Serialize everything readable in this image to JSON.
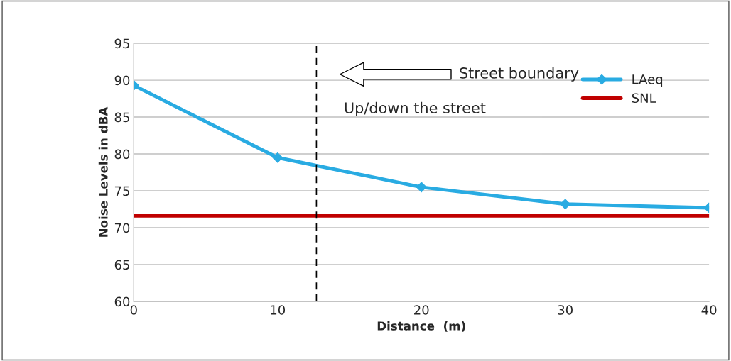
{
  "chart_data": {
    "type": "line",
    "xlabel": "Distance  (m)",
    "ylabel": "Noise Levels in dBA",
    "x": [
      0,
      10,
      20,
      30,
      40
    ],
    "series": [
      {
        "name": "LAeq",
        "color": "#29abe2",
        "values": [
          89.3,
          79.5,
          75.5,
          73.2,
          72.7
        ],
        "marker": "diamond"
      },
      {
        "name": "SNL",
        "color": "#c00000",
        "values": [
          71.6,
          71.6,
          71.6,
          71.6,
          71.6
        ],
        "marker": "none"
      }
    ],
    "xlim": [
      0,
      40
    ],
    "xticks": [
      0,
      10,
      20,
      30,
      40
    ],
    "ylim": [
      60,
      95
    ],
    "yticks": [
      60,
      65,
      70,
      75,
      80,
      85,
      90,
      95
    ],
    "grid": "y",
    "legend": "right",
    "line_style": "solid",
    "ref_lines": [
      {
        "axis": "x",
        "value": 12.7,
        "line_style": "dashed",
        "color": "#000000"
      }
    ],
    "annotations": [
      "Street boundary",
      "Up/down the street"
    ]
  }
}
